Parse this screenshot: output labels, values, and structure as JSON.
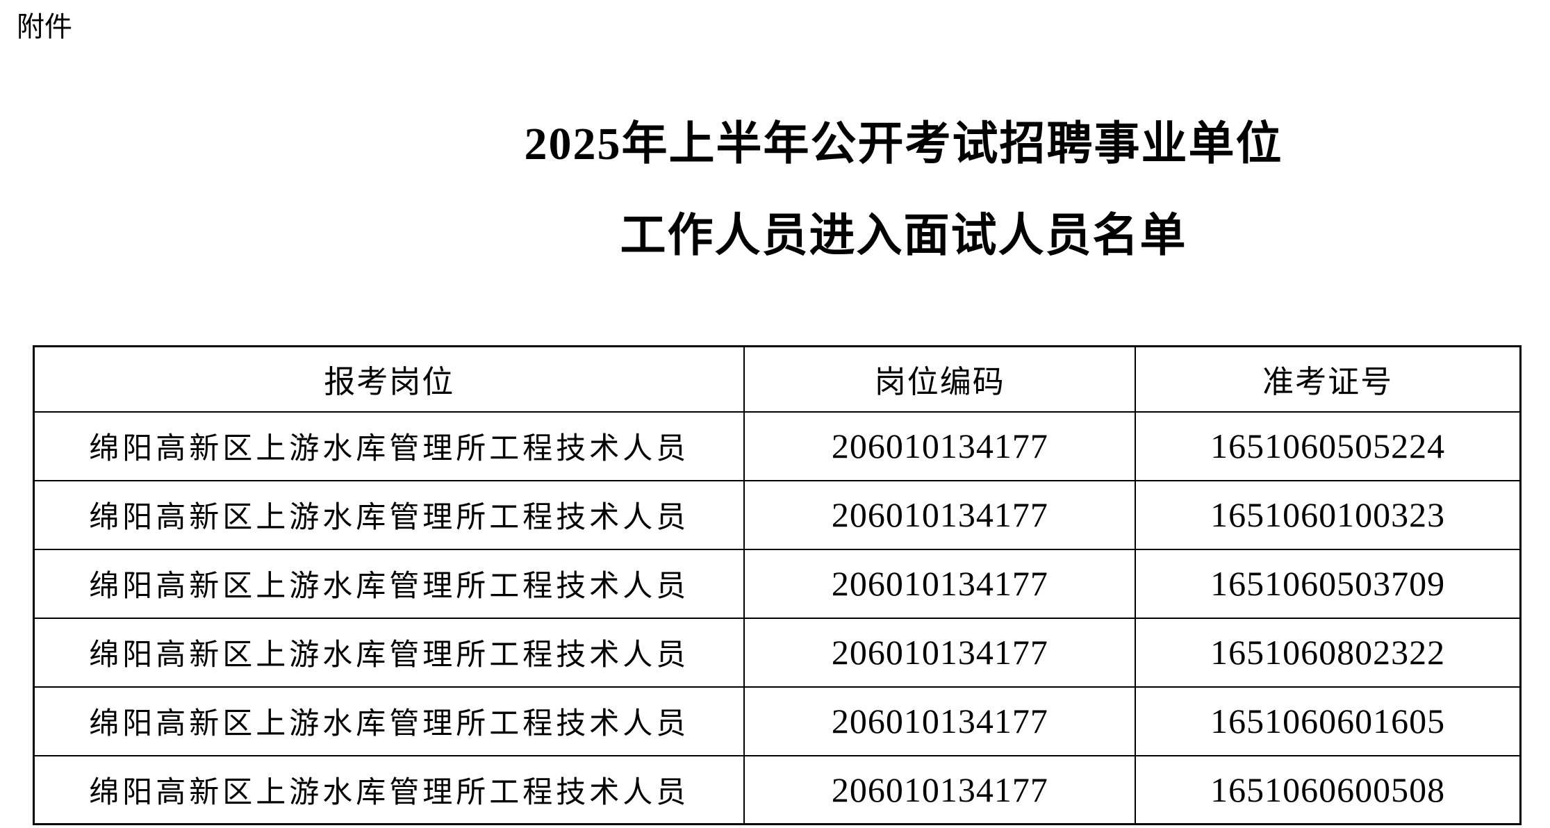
{
  "attachment_label": "附件",
  "title": {
    "line1": "2025年上半年公开考试招聘事业单位",
    "line2": "工作人员进入面试人员名单"
  },
  "table": {
    "headers": [
      "报考岗位",
      "岗位编码",
      "准考证号"
    ],
    "rows": [
      {
        "position": "绵阳高新区上游水库管理所工程技术人员",
        "code": "206010134177",
        "ticket": "1651060505224"
      },
      {
        "position": "绵阳高新区上游水库管理所工程技术人员",
        "code": "206010134177",
        "ticket": "1651060100323"
      },
      {
        "position": "绵阳高新区上游水库管理所工程技术人员",
        "code": "206010134177",
        "ticket": "1651060503709"
      },
      {
        "position": "绵阳高新区上游水库管理所工程技术人员",
        "code": "206010134177",
        "ticket": "1651060802322"
      },
      {
        "position": "绵阳高新区上游水库管理所工程技术人员",
        "code": "206010134177",
        "ticket": "1651060601605"
      },
      {
        "position": "绵阳高新区上游水库管理所工程技术人员",
        "code": "206010134177",
        "ticket": "1651060600508"
      }
    ]
  },
  "colors": {
    "background": "#ffffff",
    "text": "#000000",
    "border": "#000000"
  }
}
